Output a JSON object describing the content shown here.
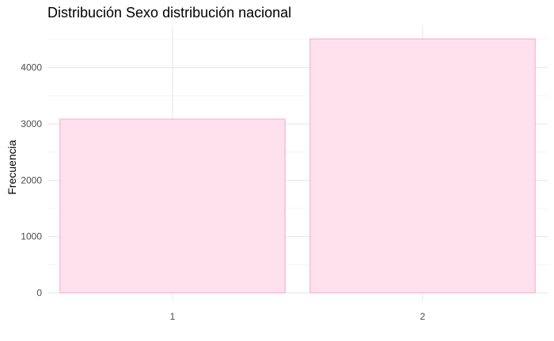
{
  "chart_data": {
    "type": "bar",
    "title": "Distribución Sexo distribución nacional",
    "xlabel": "",
    "ylabel": "Frecuencia",
    "categories": [
      "1",
      "2"
    ],
    "values": [
      3085,
      4510
    ],
    "ylim": [
      0,
      4760
    ],
    "yticks": [
      0,
      1000,
      2000,
      3000,
      4000
    ],
    "grid": true,
    "legend": "none",
    "colors": {
      "bar_fill": "#ffe1ed",
      "bar_stroke": "#f4a6c8"
    }
  }
}
